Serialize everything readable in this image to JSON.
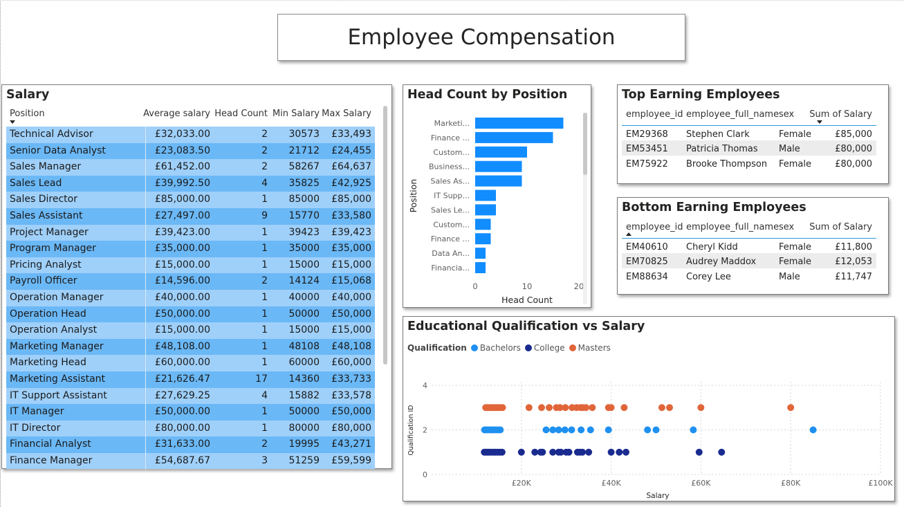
{
  "page_title": "Employee Compensation",
  "salary_table": {
    "title": "Salary",
    "columns": {
      "position": "Position",
      "avg": "Average salary",
      "headcount": "Head Count",
      "min": "Min Salary",
      "max": "Max Salary"
    },
    "rows": [
      {
        "position": "Technical Advisor",
        "avg": "£32,033.00",
        "headcount": "2",
        "min": "30573",
        "max": "£33,493"
      },
      {
        "position": "Senior Data Analyst",
        "avg": "£23,083.50",
        "headcount": "2",
        "min": "21712",
        "max": "£24,455"
      },
      {
        "position": "Sales Manager",
        "avg": "£61,452.00",
        "headcount": "2",
        "min": "58267",
        "max": "£64,637"
      },
      {
        "position": "Sales Lead",
        "avg": "£39,992.50",
        "headcount": "4",
        "min": "35825",
        "max": "£42,925"
      },
      {
        "position": "Sales Director",
        "avg": "£85,000.00",
        "headcount": "1",
        "min": "85000",
        "max": "£85,000"
      },
      {
        "position": "Sales Assistant",
        "avg": "£27,497.00",
        "headcount": "9",
        "min": "15770",
        "max": "£33,580"
      },
      {
        "position": "Project Manager",
        "avg": "£39,423.00",
        "headcount": "1",
        "min": "39423",
        "max": "£39,423"
      },
      {
        "position": "Program Manager",
        "avg": "£35,000.00",
        "headcount": "1",
        "min": "35000",
        "max": "£35,000"
      },
      {
        "position": "Pricing Analyst",
        "avg": "£15,000.00",
        "headcount": "1",
        "min": "15000",
        "max": "£15,000"
      },
      {
        "position": "Payroll Officer",
        "avg": "£14,596.00",
        "headcount": "2",
        "min": "14124",
        "max": "£15,068"
      },
      {
        "position": "Operation Manager",
        "avg": "£40,000.00",
        "headcount": "1",
        "min": "40000",
        "max": "£40,000"
      },
      {
        "position": "Operation Head",
        "avg": "£50,000.00",
        "headcount": "1",
        "min": "50000",
        "max": "£50,000"
      },
      {
        "position": "Operation Analyst",
        "avg": "£15,000.00",
        "headcount": "1",
        "min": "15000",
        "max": "£15,000"
      },
      {
        "position": "Marketing Manager",
        "avg": "£48,108.00",
        "headcount": "1",
        "min": "48108",
        "max": "£48,108"
      },
      {
        "position": "Marketing Head",
        "avg": "£60,000.00",
        "headcount": "1",
        "min": "60000",
        "max": "£60,000"
      },
      {
        "position": "Marketing Assistant",
        "avg": "£21,626.47",
        "headcount": "17",
        "min": "14360",
        "max": "£33,733"
      },
      {
        "position": "IT Support Assistant",
        "avg": "£27,629.25",
        "headcount": "4",
        "min": "15882",
        "max": "£33,578"
      },
      {
        "position": "IT Manager",
        "avg": "£50,000.00",
        "headcount": "1",
        "min": "50000",
        "max": "£50,000"
      },
      {
        "position": "IT Director",
        "avg": "£80,000.00",
        "headcount": "1",
        "min": "80000",
        "max": "£80,000"
      },
      {
        "position": "Financial Analyst",
        "avg": "£31,633.00",
        "headcount": "2",
        "min": "19995",
        "max": "£43,271"
      },
      {
        "position": "Finance Manager",
        "avg": "£54,687.67",
        "headcount": "3",
        "min": "51259",
        "max": "£59,599"
      }
    ]
  },
  "top_table": {
    "title": "Top Earning Employees",
    "columns": {
      "id": "employee_id",
      "name": "employee_full_name",
      "sex": "sex",
      "sum": "Sum of Salary"
    },
    "rows": [
      {
        "id": "EM29368",
        "name": "Stephen Clark",
        "sex": "Female",
        "sum": "£85,000"
      },
      {
        "id": "EM53451",
        "name": "Patricia Thomas",
        "sex": "Male",
        "sum": "£80,000"
      },
      {
        "id": "EM75922",
        "name": "Brooke Thompson",
        "sex": "Female",
        "sum": "£80,000"
      }
    ]
  },
  "bottom_table": {
    "title": "Bottom Earning Employees",
    "columns": {
      "id": "employee_id",
      "name": "employee_full_name",
      "sex": "sex",
      "sum": "Sum of Salary"
    },
    "rows": [
      {
        "id": "EM40610",
        "name": "Cheryl Kidd",
        "sex": "Female",
        "sum": "£11,800"
      },
      {
        "id": "EM70825",
        "name": "Audrey Maddox",
        "sex": "Female",
        "sum": "£12,053"
      },
      {
        "id": "EM88634",
        "name": "Corey Lee",
        "sex": "Male",
        "sum": "£11,747"
      }
    ]
  },
  "colors": {
    "bar": "#118dff",
    "bachelors": "#1e90f0",
    "college": "#1a2b8f",
    "masters": "#e0663a",
    "row_odd": "#9fd0fa",
    "row_even": "#6bb8f6"
  },
  "chart_data": [
    {
      "type": "bar",
      "orientation": "horizontal",
      "title": "Head Count by Position",
      "xlabel": "Head Count",
      "ylabel": "Position",
      "categories": [
        "Marketi...",
        "Finance ...",
        "Custom...",
        "Business...",
        "Sales As...",
        "IT Supp...",
        "Sales Le...",
        "Custom...",
        "Finance ...",
        "Data An...",
        "Financia..."
      ],
      "values": [
        17,
        15,
        10,
        9,
        9,
        4,
        4,
        3,
        3,
        2,
        2
      ],
      "xlim": [
        0,
        20
      ],
      "xticks": [
        0,
        10,
        20
      ]
    },
    {
      "type": "scatter",
      "title": "Educational Qualification vs Salary",
      "xlabel": "Salary",
      "ylabel": "Qualification ID",
      "legend_title": "Qualification",
      "legend_position": "top-left",
      "xlim": [
        0,
        100000
      ],
      "ylim": [
        0,
        4
      ],
      "xticks": [
        "£20K",
        "£40K",
        "£60K",
        "£80K",
        "£100K"
      ],
      "yticks": [
        0,
        2,
        4
      ],
      "grid": true,
      "series": [
        {
          "name": "Bachelors",
          "y": 2,
          "x": [
            11800,
            12100,
            12500,
            13000,
            13400,
            13800,
            14300,
            14800,
            15300,
            25500,
            27000,
            28300,
            29700,
            31200,
            33300,
            35400,
            39400,
            48100,
            50000,
            58300,
            85000
          ]
        },
        {
          "name": "College",
          "y": 1,
          "x": [
            11747,
            12100,
            12500,
            12900,
            13300,
            13800,
            14200,
            14700,
            15200,
            15700,
            20000,
            23000,
            24300,
            24700,
            27000,
            28300,
            28800,
            30000,
            30600,
            32500,
            33000,
            33600,
            35000,
            40000,
            41800,
            43300,
            59600,
            64600
          ]
        },
        {
          "name": "Masters",
          "y": 3,
          "x": [
            12053,
            12500,
            12900,
            13300,
            13800,
            14300,
            14700,
            15200,
            15800,
            21700,
            24500,
            26200,
            27800,
            28600,
            29800,
            31300,
            32300,
            33200,
            33700,
            34400,
            35800,
            39400,
            40000,
            42900,
            51300,
            53000,
            60000,
            80000
          ]
        }
      ]
    }
  ]
}
